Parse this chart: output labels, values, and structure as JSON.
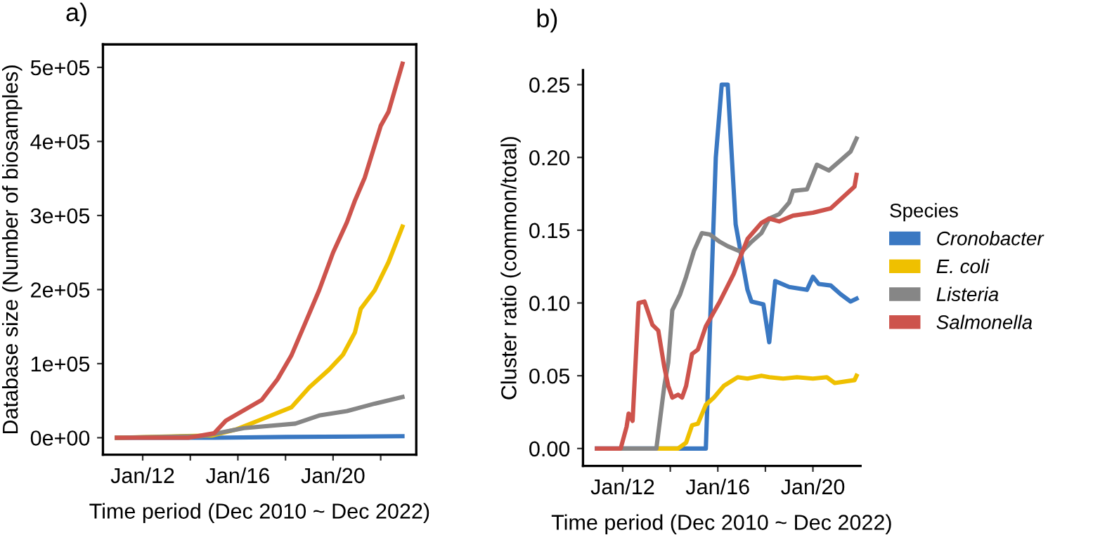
{
  "chart_data": [
    {
      "type": "line",
      "title": "a)",
      "xlabel": "Time period (Dec 2010 ~ Dec 2022)",
      "ylabel": "Database size (Number of biosamples)",
      "xlim": [
        "2010-05",
        "2023-07"
      ],
      "ylim": [
        -23000,
        531000
      ],
      "xticks": [
        {
          "value": "2012-01",
          "label": "Jan/12"
        },
        {
          "value": "2014-01",
          "label": null
        },
        {
          "value": "2016-01",
          "label": "Jan/16"
        },
        {
          "value": "2018-01",
          "label": null
        },
        {
          "value": "2020-01",
          "label": "Jan/20"
        },
        {
          "value": "2022-01",
          "label": null
        }
      ],
      "yticks": [
        {
          "value": 0,
          "label": "0e+00"
        },
        {
          "value": 100000,
          "label": "1e+05"
        },
        {
          "value": 200000,
          "label": "2e+05"
        },
        {
          "value": 300000,
          "label": "3e+05"
        },
        {
          "value": 400000,
          "label": "4e+05"
        },
        {
          "value": 500000,
          "label": "5e+05"
        }
      ],
      "grid": false,
      "legend": false,
      "marker": "none",
      "line_style": "solid",
      "series": [
        {
          "color": "#3a78c2",
          "x": [
            "2010-12",
            "2015-01",
            "2018-01",
            "2022-12"
          ],
          "values": [
            0,
            0,
            1000,
            2000
          ]
        },
        {
          "color": "#efc000",
          "x": [
            "2010-12",
            "2014-12",
            "2015-12",
            "2017-02",
            "2018-04",
            "2019-01",
            "2019-11",
            "2020-06",
            "2020-12",
            "2021-03",
            "2021-10",
            "2022-05",
            "2022-12"
          ],
          "values": [
            0,
            3000,
            11000,
            26000,
            41000,
            68000,
            92000,
            112000,
            142000,
            174000,
            199000,
            237000,
            285000
          ]
        },
        {
          "color": "#868686",
          "x": [
            "2010-12",
            "2014-07",
            "2016-04",
            "2018-06",
            "2019-06",
            "2020-08",
            "2021-10",
            "2022-12"
          ],
          "values": [
            0,
            2000,
            13000,
            19000,
            30000,
            36000,
            46000,
            55000
          ]
        },
        {
          "color": "#cd534c",
          "x": [
            "2010-12",
            "2013-12",
            "2015-01",
            "2015-07",
            "2017-01",
            "2017-09",
            "2018-04",
            "2018-11",
            "2019-06",
            "2020-01",
            "2020-08",
            "2020-12",
            "2021-05",
            "2022-01",
            "2022-05",
            "2022-12"
          ],
          "values": [
            0,
            0,
            6000,
            23000,
            51000,
            79000,
            111000,
            155000,
            199000,
            250000,
            291000,
            320000,
            351000,
            421000,
            440000,
            505000
          ]
        }
      ]
    },
    {
      "type": "line",
      "title": "b)",
      "xlabel": "Time period (Dec 2010 ~ Dec 2022)",
      "ylabel": "Cluster ratio (common/total)",
      "legend_title": "Species",
      "xlim": [
        "2010-05",
        "2022-01"
      ],
      "ylim": [
        -0.012,
        0.26
      ],
      "xticks": [
        {
          "value": "2012-01",
          "label": "Jan/12"
        },
        {
          "value": "2014-01",
          "label": null
        },
        {
          "value": "2016-01",
          "label": "Jan/16"
        },
        {
          "value": "2018-01",
          "label": null
        },
        {
          "value": "2020-01",
          "label": "Jan/20"
        }
      ],
      "yticks": [
        {
          "value": 0,
          "label": "0.00"
        },
        {
          "value": 0.05,
          "label": "0.05"
        },
        {
          "value": 0.1,
          "label": "0.10"
        },
        {
          "value": 0.15,
          "label": "0.15"
        },
        {
          "value": 0.2,
          "label": "0.20"
        },
        {
          "value": 0.25,
          "label": "0.25"
        }
      ],
      "grid": false,
      "legend": "right",
      "marker": "none",
      "line_style": "solid",
      "series": [
        {
          "name": "Cronobacter",
          "color": "#3a78c2",
          "x": [
            "2010-12",
            "2015-07",
            "2015-12",
            "2016-03",
            "2016-06",
            "2016-10",
            "2017-04",
            "2017-06",
            "2017-12",
            "2018-03",
            "2018-06",
            "2019-01",
            "2019-10",
            "2020-01",
            "2020-04",
            "2020-10",
            "2021-03",
            "2021-08",
            "2021-11"
          ],
          "values": [
            0,
            0,
            0.2,
            0.25,
            0.25,
            0.154,
            0.109,
            0.101,
            0.099,
            0.073,
            0.115,
            0.111,
            0.109,
            0.118,
            0.113,
            0.112,
            0.106,
            0.101,
            0.103
          ]
        },
        {
          "name": "E. coli",
          "color": "#efc000",
          "x": [
            "2013-07",
            "2014-05",
            "2014-09",
            "2014-12",
            "2015-03",
            "2015-07",
            "2015-11",
            "2016-04",
            "2016-11",
            "2017-04",
            "2017-11",
            "2018-03",
            "2018-10",
            "2019-05",
            "2020-01",
            "2020-08",
            "2020-12",
            "2021-10",
            "2021-11"
          ],
          "values": [
            0,
            0,
            0.004,
            0.016,
            0.017,
            0.03,
            0.035,
            0.043,
            0.049,
            0.048,
            0.05,
            0.049,
            0.048,
            0.049,
            0.048,
            0.049,
            0.045,
            0.047,
            0.05
          ]
        },
        {
          "name": "Listeria",
          "color": "#868686",
          "x": [
            "2012-01",
            "2013-06",
            "2013-10",
            "2013-12",
            "2014-02",
            "2014-06",
            "2014-09",
            "2015-01",
            "2015-05",
            "2015-09",
            "2016-02",
            "2016-06",
            "2017-01",
            "2017-06",
            "2017-11",
            "2018-03",
            "2018-08",
            "2019-01",
            "2019-03",
            "2019-10",
            "2020-03",
            "2020-09",
            "2021-03",
            "2021-08",
            "2021-11"
          ],
          "values": [
            0,
            0,
            0.043,
            0.059,
            0.095,
            0.106,
            0.118,
            0.136,
            0.148,
            0.147,
            0.142,
            0.139,
            0.135,
            0.142,
            0.148,
            0.158,
            0.161,
            0.169,
            0.177,
            0.178,
            0.195,
            0.191,
            0.198,
            0.204,
            0.213
          ]
        },
        {
          "name": "Salmonella",
          "color": "#cd534c",
          "x": [
            "2010-12",
            "2011-12",
            "2012-03",
            "2012-04",
            "2012-06",
            "2012-09",
            "2012-12",
            "2013-04",
            "2013-07",
            "2013-10",
            "2013-12",
            "2014-02",
            "2014-05",
            "2014-07",
            "2014-09",
            "2014-12",
            "2015-03",
            "2015-07",
            "2016-02",
            "2016-09",
            "2017-04",
            "2017-11",
            "2018-03",
            "2018-08",
            "2019-03",
            "2020-01",
            "2020-10",
            "2021-10",
            "2021-11"
          ],
          "values": [
            0,
            0,
            0.015,
            0.024,
            0.019,
            0.1,
            0.101,
            0.085,
            0.081,
            0.056,
            0.043,
            0.035,
            0.037,
            0.035,
            0.043,
            0.065,
            0.068,
            0.084,
            0.101,
            0.12,
            0.144,
            0.155,
            0.158,
            0.156,
            0.16,
            0.162,
            0.165,
            0.18,
            0.188
          ]
        }
      ]
    }
  ]
}
